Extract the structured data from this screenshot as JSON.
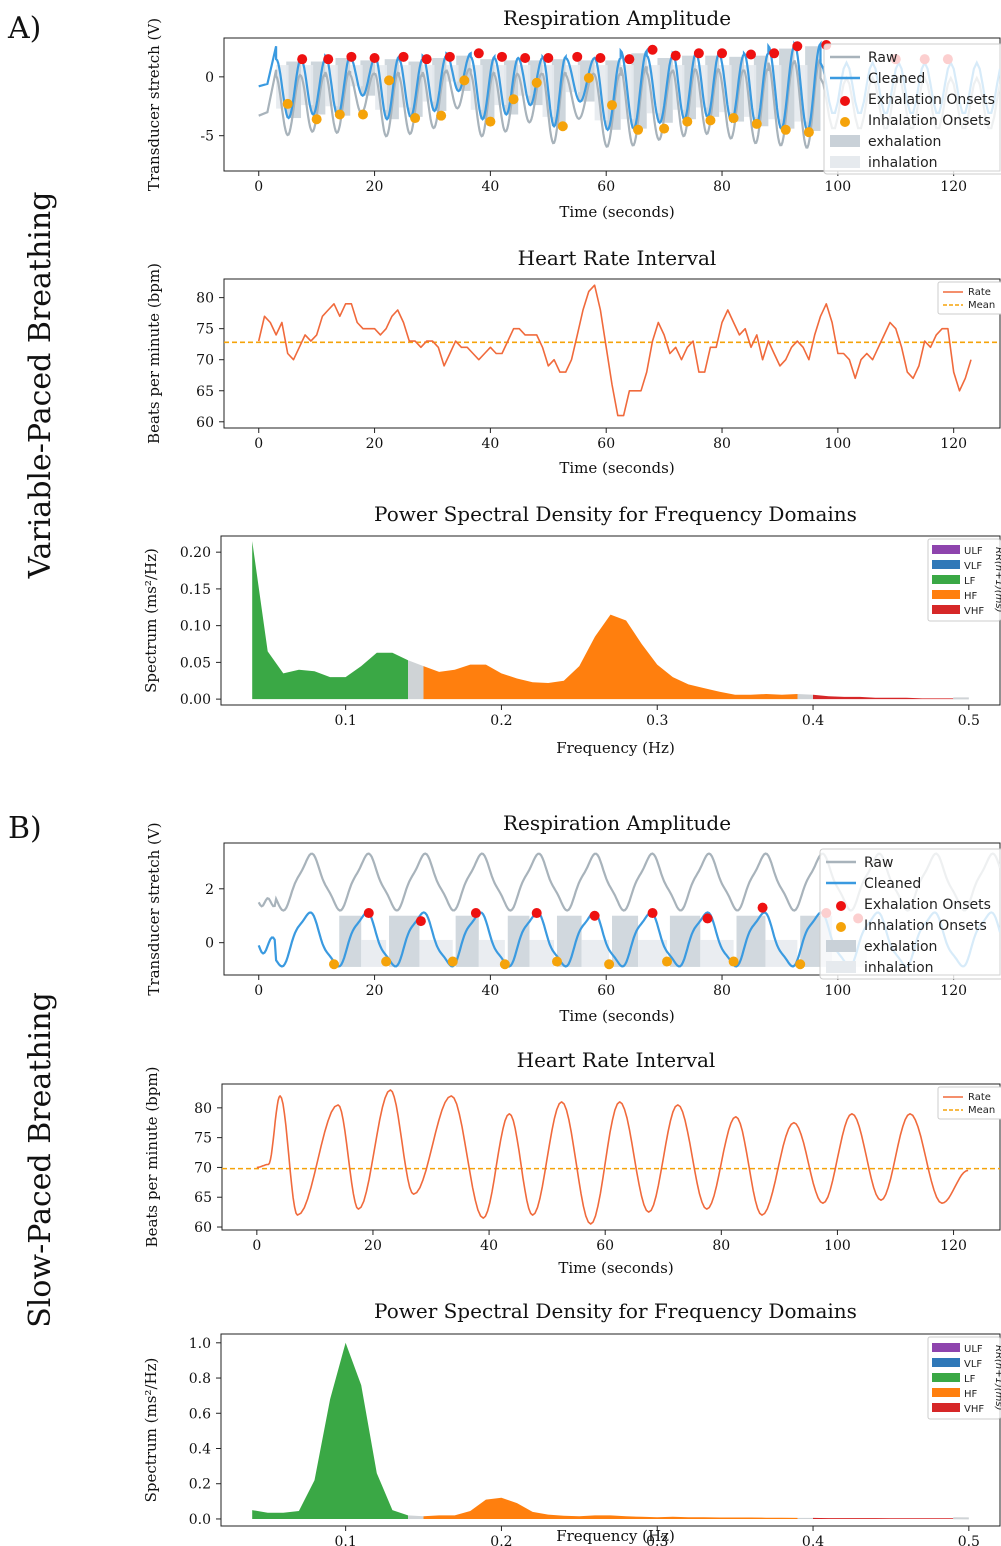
{
  "labels": {
    "panel_a": "A)",
    "panel_b": "B)",
    "side_a": "Variable-Paced Breathing",
    "side_b": "Slow-Paced Breathing"
  },
  "colors": {
    "raw": "#a8b3bb",
    "cleaned": "#3a9ae0",
    "exhalation_onset": "#ee1111",
    "inhalation_onset": "#f5a30a",
    "exhalation_fill": "#c9d1d8",
    "inhalation_fill": "#e6eaee",
    "rate": "#f06a3c",
    "mean": "#f5a30a",
    "ULF": "#8e44ad",
    "VLF": "#2f78b8",
    "LF": "#3aa845",
    "HF": "#ff7f0e",
    "VHF": "#d62728",
    "gap": "#cfd3d6"
  },
  "chart_data": [
    {
      "id": "resp_a",
      "type": "line",
      "title": "Respiration Amplitude",
      "xlabel": "Time (seconds)",
      "ylabel": "Transducer stretch (V)",
      "xlim": [
        -6,
        128
      ],
      "ylim": [
        -8,
        3.3
      ],
      "xticks": [
        0,
        20,
        40,
        60,
        80,
        100,
        120
      ],
      "yticks": [
        0,
        -5
      ],
      "ytick_labels": [
        "0",
        "-5"
      ],
      "cycles": [
        [
          3,
          7.3
        ],
        [
          7.3,
          11.5
        ],
        [
          11.5,
          15.8
        ],
        [
          15.8,
          20.1
        ],
        [
          20.1,
          24.2
        ],
        [
          24.2,
          28.3
        ],
        [
          28.3,
          32.4
        ],
        [
          32.4,
          36.6
        ],
        [
          36.6,
          40.7
        ],
        [
          40.7,
          44.8
        ],
        [
          44.8,
          49
        ],
        [
          49,
          53
        ],
        [
          53,
          58
        ],
        [
          58,
          62.5
        ],
        [
          62.5,
          67
        ],
        [
          67,
          71.5
        ],
        [
          71.5,
          75.5
        ],
        [
          75.5,
          79.5
        ],
        [
          79.5,
          83.8
        ],
        [
          83.8,
          88
        ],
        [
          88,
          92.5
        ],
        [
          92.5,
          97
        ]
      ],
      "cleaned_min": [
        -3.5,
        -3.2,
        -3.3,
        -1.6,
        -3.6,
        -3.4,
        -2.9,
        -1.2,
        -3.6,
        -3.2,
        -2.4,
        -4.2,
        -2.1,
        -4.5,
        -4.4,
        -3.9,
        -3.6,
        -3.4,
        -3.8,
        -4.2,
        -4.4,
        -4.6
      ],
      "cleaned_max": [
        1.5,
        1.5,
        1.8,
        1.6,
        1.7,
        1.5,
        1.8,
        2.0,
        1.7,
        1.6,
        1.6,
        1.7,
        1.6,
        1.6,
        2.2,
        1.8,
        2.0,
        2.0,
        1.9,
        2.0,
        2.6,
        2.8
      ],
      "exhalation_onsets": [
        [
          7.5,
          1.5
        ],
        [
          12,
          1.5
        ],
        [
          16,
          1.7
        ],
        [
          20,
          1.6
        ],
        [
          25,
          1.7
        ],
        [
          29,
          1.5
        ],
        [
          33,
          1.7
        ],
        [
          38,
          2.0
        ],
        [
          42,
          1.7
        ],
        [
          46,
          1.6
        ],
        [
          50,
          1.6
        ],
        [
          55,
          1.7
        ],
        [
          59,
          1.6
        ],
        [
          64,
          1.5
        ],
        [
          68,
          2.3
        ],
        [
          72,
          1.8
        ],
        [
          76,
          2.0
        ],
        [
          80,
          2.0
        ],
        [
          85,
          1.9
        ],
        [
          89,
          2.0
        ],
        [
          93,
          2.6
        ],
        [
          98,
          2.7
        ],
        [
          110,
          1.5
        ],
        [
          115,
          1.5
        ],
        [
          119,
          1.5
        ]
      ],
      "inhalation_onsets": [
        [
          5,
          -2.3
        ],
        [
          10,
          -3.6
        ],
        [
          14,
          -3.2
        ],
        [
          18,
          -3.2
        ],
        [
          22.5,
          -0.3
        ],
        [
          27,
          -3.5
        ],
        [
          31.5,
          -3.3
        ],
        [
          35.5,
          -0.3
        ],
        [
          40,
          -3.8
        ],
        [
          44,
          -1.9
        ],
        [
          48,
          -0.5
        ],
        [
          52.5,
          -4.2
        ],
        [
          57,
          -0.1
        ],
        [
          61,
          -2.4
        ],
        [
          65.5,
          -4.5
        ],
        [
          70,
          -4.4
        ],
        [
          74,
          -3.8
        ],
        [
          78,
          -3.7
        ],
        [
          82,
          -3.5
        ],
        [
          86,
          -4.0
        ],
        [
          91,
          -4.5
        ],
        [
          95,
          -4.7
        ]
      ],
      "legend": [
        "Raw",
        "Cleaned",
        "Exhalation Onsets",
        "Inhalation Onsets",
        "exhalation",
        "inhalation"
      ]
    },
    {
      "id": "hr_a",
      "type": "line",
      "title": "Heart Rate Interval",
      "xlabel": "Time (seconds)",
      "ylabel": "Beats per minute (bpm)",
      "xlim": [
        -6,
        128
      ],
      "ylim": [
        59,
        83
      ],
      "xticks": [
        0,
        20,
        40,
        60,
        80,
        100,
        120
      ],
      "yticks": [
        60,
        65,
        70,
        75,
        80
      ],
      "mean": 72.8,
      "x": [
        0,
        1,
        2,
        3,
        4,
        5,
        6,
        7,
        8,
        9,
        10,
        11,
        12,
        13,
        14,
        15,
        16,
        17,
        18,
        19,
        20,
        21,
        22,
        23,
        24,
        25,
        26,
        27,
        28,
        29,
        30,
        31,
        32,
        33,
        34,
        35,
        36,
        37,
        38,
        39,
        40,
        41,
        42,
        43,
        44,
        45,
        46,
        47,
        48,
        49,
        50,
        51,
        52,
        53,
        54,
        55,
        56,
        57,
        58,
        59,
        60,
        61,
        62,
        63,
        64,
        65,
        66,
        67,
        68,
        69,
        70,
        71,
        72,
        73,
        74,
        75,
        76,
        77,
        78,
        79,
        80,
        81,
        82,
        83,
        84,
        85,
        86,
        87,
        88,
        89,
        90,
        91,
        92,
        93,
        94,
        95,
        96,
        97,
        98,
        99,
        100,
        101,
        102,
        103,
        104,
        105,
        106,
        107,
        108,
        109,
        110,
        111,
        112,
        113,
        114,
        115,
        116,
        117,
        118,
        119,
        120,
        121,
        122,
        123
      ],
      "values": [
        73,
        77,
        76,
        74,
        76,
        71,
        70,
        72,
        74,
        73,
        74,
        77,
        78,
        79,
        77,
        79,
        79,
        76,
        75,
        75,
        75,
        74,
        75,
        77,
        78,
        76,
        73,
        73,
        72,
        73,
        73,
        72,
        69,
        71,
        73,
        72,
        72,
        71,
        70,
        71,
        72,
        71,
        71,
        73,
        75,
        75,
        74,
        74,
        74,
        72,
        69,
        70,
        68,
        68,
        70,
        74,
        78,
        81,
        82,
        78,
        72,
        66,
        61,
        61,
        65,
        65,
        65,
        68,
        73,
        76,
        74,
        71,
        72,
        70,
        72,
        73,
        68,
        68,
        72,
        72,
        76,
        78,
        76,
        74,
        75,
        72,
        74,
        70,
        73,
        71,
        69,
        70,
        72,
        73,
        72,
        70,
        74,
        77,
        79,
        76,
        71,
        71,
        70,
        67,
        70,
        71,
        70,
        72,
        74,
        76,
        75,
        72,
        68,
        67,
        69,
        73,
        72,
        74,
        75,
        75,
        68,
        65,
        67,
        70
      ],
      "legend": [
        "Rate",
        "Mean"
      ]
    },
    {
      "id": "psd_a",
      "type": "area",
      "title": "Power Spectral Density for Frequency Domains",
      "xlabel": "Frequency (Hz)",
      "ylabel": "Spectrum (ms²/Hz)",
      "xlim": [
        0.02,
        0.52
      ],
      "ylim": [
        -0.008,
        0.222
      ],
      "xticks": [
        0.1,
        0.2,
        0.3,
        0.4,
        0.5
      ],
      "yticks": [
        0.0,
        0.05,
        0.1,
        0.15,
        0.2
      ],
      "ytick_labels": [
        "0.00",
        "0.05",
        "0.10",
        "0.15",
        "0.20"
      ],
      "freq": [
        0.04,
        0.05,
        0.06,
        0.07,
        0.08,
        0.09,
        0.1,
        0.11,
        0.12,
        0.13,
        0.14,
        0.15,
        0.16,
        0.17,
        0.18,
        0.19,
        0.2,
        0.21,
        0.22,
        0.23,
        0.24,
        0.25,
        0.26,
        0.27,
        0.28,
        0.29,
        0.3,
        0.31,
        0.32,
        0.33,
        0.34,
        0.35,
        0.36,
        0.37,
        0.38,
        0.39,
        0.4,
        0.41,
        0.42,
        0.43,
        0.44,
        0.45,
        0.46,
        0.47,
        0.48,
        0.49,
        0.5
      ],
      "power": [
        0.215,
        0.065,
        0.035,
        0.04,
        0.038,
        0.03,
        0.03,
        0.045,
        0.063,
        0.063,
        0.053,
        0.045,
        0.037,
        0.04,
        0.047,
        0.047,
        0.035,
        0.028,
        0.023,
        0.022,
        0.025,
        0.045,
        0.085,
        0.115,
        0.107,
        0.075,
        0.047,
        0.03,
        0.02,
        0.015,
        0.01,
        0.006,
        0.006,
        0.007,
        0.006,
        0.007,
        0.006,
        0.004,
        0.003,
        0.003,
        0.002,
        0.002,
        0.002,
        0.001,
        0.001,
        0.001,
        0.001
      ],
      "bands": [
        {
          "name": "LF",
          "range": [
            0.04,
            0.14
          ]
        },
        {
          "name": "gap",
          "range": [
            0.14,
            0.15
          ]
        },
        {
          "name": "HF",
          "range": [
            0.15,
            0.39
          ]
        },
        {
          "name": "gap",
          "range": [
            0.39,
            0.4
          ]
        },
        {
          "name": "VHF",
          "range": [
            0.4,
            0.49
          ]
        }
      ],
      "legend": [
        "ULF",
        "VLF",
        "LF",
        "HF",
        "VHF"
      ],
      "side_text": "RR(n+1)(ms)"
    },
    {
      "id": "resp_b",
      "type": "line",
      "title": "Respiration Amplitude",
      "xlabel": "Time (seconds)",
      "ylabel": "Transducer stretch (V)",
      "xlim": [
        -6,
        128
      ],
      "ylim": [
        -1.2,
        3.7
      ],
      "xticks": [
        0,
        20,
        40,
        60,
        80,
        100,
        120
      ],
      "yticks": [
        2,
        0
      ],
      "ytick_labels": [
        "2",
        "0"
      ],
      "cycles": [
        [
          0,
          13.4
        ],
        [
          13.4,
          22
        ],
        [
          22,
          33.5
        ],
        [
          33.5,
          42.5
        ],
        [
          42.5,
          51
        ],
        [
          51,
          60.5
        ],
        [
          60.5,
          70.5
        ],
        [
          70.5,
          82
        ],
        [
          82,
          93
        ],
        [
          93,
          105
        ]
      ],
      "exhalation_onsets": [
        [
          19,
          1.1
        ],
        [
          28,
          0.8
        ],
        [
          37.5,
          1.1
        ],
        [
          48,
          1.1
        ],
        [
          58,
          1.0
        ],
        [
          68,
          1.1
        ],
        [
          77.5,
          0.9
        ],
        [
          87,
          1.3
        ],
        [
          98,
          1.1
        ],
        [
          103.5,
          0.9
        ]
      ],
      "inhalation_onsets": [
        [
          13,
          -0.8
        ],
        [
          22,
          -0.7
        ],
        [
          33.5,
          -0.7
        ],
        [
          42.5,
          -0.8
        ],
        [
          51.5,
          -0.7
        ],
        [
          60.5,
          -0.8
        ],
        [
          70.5,
          -0.7
        ],
        [
          82,
          -0.7
        ],
        [
          93.5,
          -0.8
        ]
      ],
      "legend": [
        "Raw",
        "Cleaned",
        "Exhalation Onsets",
        "Inhalation Onsets",
        "exhalation",
        "inhalation"
      ]
    },
    {
      "id": "hr_b",
      "type": "line",
      "title": "Heart Rate Interval",
      "xlabel": "Time (seconds)",
      "ylabel": "Beats per minute (bpm)",
      "xlim": [
        -6,
        128
      ],
      "ylim": [
        59.5,
        84
      ],
      "xticks": [
        0,
        20,
        40,
        60,
        80,
        100,
        120
      ],
      "yticks": [
        60,
        65,
        70,
        75,
        80
      ],
      "mean": 69.8,
      "peaks": [
        [
          4,
          82
        ],
        [
          14,
          80.5
        ],
        [
          23,
          83
        ],
        [
          33.5,
          82
        ],
        [
          43.5,
          79
        ],
        [
          52.5,
          81
        ],
        [
          62.5,
          81
        ],
        [
          72.5,
          80.5
        ],
        [
          82.5,
          78.5
        ],
        [
          92.5,
          77.5
        ],
        [
          102.5,
          79
        ],
        [
          112.5,
          79
        ]
      ],
      "troughs": [
        [
          7,
          62
        ],
        [
          17.5,
          63
        ],
        [
          27,
          65.5
        ],
        [
          39,
          61.5
        ],
        [
          47.5,
          62
        ],
        [
          57.5,
          60.5
        ],
        [
          67.5,
          62.5
        ],
        [
          77.5,
          63
        ],
        [
          87,
          62
        ],
        [
          97.5,
          64
        ],
        [
          107.5,
          64.5
        ],
        [
          118,
          64
        ]
      ],
      "legend": [
        "Rate",
        "Mean"
      ]
    },
    {
      "id": "psd_b",
      "type": "area",
      "title": "Power Spectral Density for Frequency Domains",
      "xlabel": "Frequency (Hz)",
      "ylabel": "Spectrum (ms²/Hz)",
      "xlim": [
        0.02,
        0.52
      ],
      "ylim": [
        -0.04,
        1.05
      ],
      "xticks": [
        0.1,
        0.2,
        0.3,
        0.4,
        0.5
      ],
      "yticks": [
        0.0,
        0.2,
        0.4,
        0.6,
        0.8,
        1.0
      ],
      "ytick_labels": [
        "0.0",
        "0.2",
        "0.4",
        "0.6",
        "0.8",
        "1.0"
      ],
      "freq": [
        0.04,
        0.05,
        0.06,
        0.07,
        0.08,
        0.09,
        0.1,
        0.11,
        0.12,
        0.13,
        0.14,
        0.15,
        0.16,
        0.17,
        0.18,
        0.19,
        0.2,
        0.21,
        0.22,
        0.23,
        0.24,
        0.25,
        0.26,
        0.27,
        0.28,
        0.29,
        0.3,
        0.31,
        0.32,
        0.33,
        0.34,
        0.35,
        0.36,
        0.37,
        0.38,
        0.39,
        0.4,
        0.41,
        0.42,
        0.43,
        0.44,
        0.45,
        0.46,
        0.47,
        0.48,
        0.49,
        0.5
      ],
      "power": [
        0.05,
        0.035,
        0.035,
        0.045,
        0.22,
        0.68,
        1.0,
        0.76,
        0.26,
        0.05,
        0.02,
        0.015,
        0.02,
        0.02,
        0.045,
        0.11,
        0.12,
        0.09,
        0.04,
        0.025,
        0.018,
        0.015,
        0.02,
        0.02,
        0.015,
        0.012,
        0.01,
        0.012,
        0.01,
        0.01,
        0.008,
        0.008,
        0.008,
        0.007,
        0.007,
        0.006,
        0.006,
        0.005,
        0.005,
        0.005,
        0.005,
        0.004,
        0.004,
        0.004,
        0.004,
        0.004,
        0.003
      ],
      "bands": [
        {
          "name": "LF",
          "range": [
            0.04,
            0.14
          ]
        },
        {
          "name": "gap",
          "range": [
            0.14,
            0.15
          ]
        },
        {
          "name": "HF",
          "range": [
            0.15,
            0.39
          ]
        },
        {
          "name": "gap",
          "range": [
            0.39,
            0.4
          ]
        },
        {
          "name": "VHF",
          "range": [
            0.4,
            0.49
          ]
        }
      ],
      "legend": [
        "ULF",
        "VLF",
        "LF",
        "HF",
        "VHF"
      ],
      "side_text": "RR(n+1)(ms)"
    }
  ]
}
